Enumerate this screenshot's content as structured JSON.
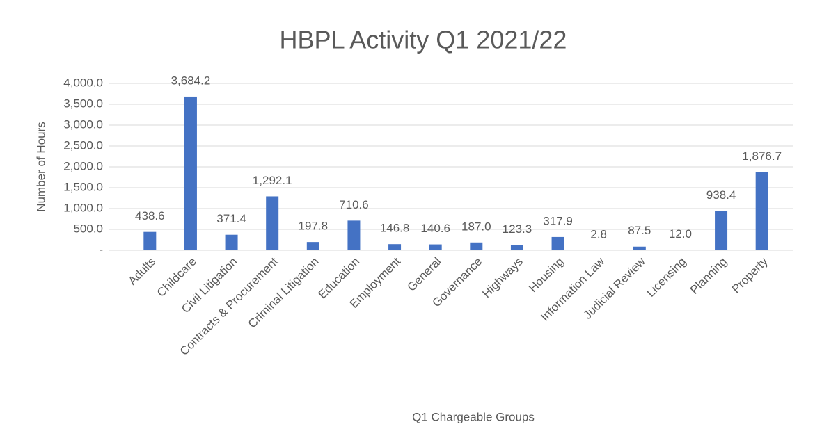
{
  "chart_data": {
    "type": "bar",
    "title": "HBPL Activity Q1 2021/22",
    "x_label": "Q1 Chargeable Groups",
    "y_label": "Number of Hours",
    "categories": [
      "Adults",
      "Childcare",
      "Civil Litigation",
      "Contracts & Procurement",
      "Criminal Litigation",
      "Education",
      "Employment",
      "General",
      "Governance",
      "Highways",
      "Housing",
      "Information Law",
      "Judicial Review",
      "Licensing",
      "Planning",
      "Property"
    ],
    "values": [
      438.6,
      3684.2,
      371.4,
      1292.1,
      197.8,
      710.6,
      146.8,
      140.6,
      187.0,
      123.3,
      317.9,
      2.8,
      87.5,
      12.0,
      938.4,
      1876.7
    ],
    "value_labels": [
      "438.6",
      "3,684.2",
      "371.4",
      "1,292.1",
      "197.8",
      "710.6",
      "146.8",
      "140.6",
      "187.0",
      "123.3",
      "317.9",
      "2.8",
      "87.5",
      "12.0",
      "938.4",
      "1,876.7"
    ],
    "color": "#4472c4",
    "ylim": [
      0,
      4000
    ],
    "yticks": [
      {
        "value": 0,
        "label": "-"
      },
      {
        "value": 500,
        "label": "500.0"
      },
      {
        "value": 1000,
        "label": "1,000.0"
      },
      {
        "value": 1500,
        "label": "1,500.0"
      },
      {
        "value": 2000,
        "label": "2,000.0"
      },
      {
        "value": 2500,
        "label": "2,500.0"
      },
      {
        "value": 3000,
        "label": "3,000.0"
      },
      {
        "value": 3500,
        "label": "3,500.0"
      },
      {
        "value": 4000,
        "label": "4,000.0"
      }
    ],
    "grid": true
  }
}
